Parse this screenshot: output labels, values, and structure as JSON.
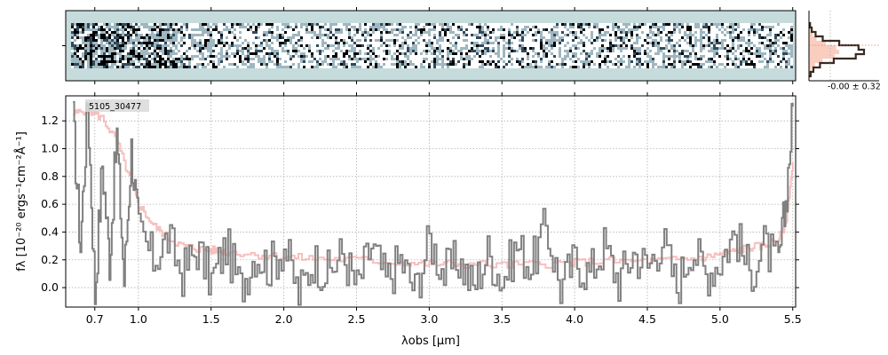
{
  "chart_data": [
    {
      "type": "heatmap",
      "panel": "2d-spectrum",
      "ylim": [
        -1,
        1
      ],
      "xlim": [
        0.5,
        5.52
      ],
      "ytick_visible": [
        0
      ],
      "background_color": "#c6dcdc",
      "colormap": [
        "#ffffff",
        "#9fb7c0",
        "#324a5a",
        "#000000"
      ]
    },
    {
      "type": "histogram",
      "panel": "residual-histogram",
      "annotation": "-0.00 ± 0.32",
      "fill_color": "#f4a58a",
      "line_color": "#3a2a20",
      "bins": [
        -3,
        -2.5,
        -2,
        -1.5,
        -1,
        -0.5,
        0,
        0.5,
        1,
        1.5,
        2,
        2.5,
        3
      ],
      "counts": [
        0.02,
        0.05,
        0.12,
        0.25,
        0.55,
        0.9,
        1.0,
        0.85,
        0.45,
        0.2,
        0.08,
        0.03
      ]
    },
    {
      "type": "line",
      "panel": "1d-spectrum",
      "object_label": "5105_30477",
      "xlabel": "λobs [μm]",
      "ylabel": "fλ [10⁻²⁰ ergs⁻¹cm⁻²Å⁻¹]",
      "xlim": [
        0.5,
        5.52
      ],
      "ylim": [
        -0.14,
        1.38
      ],
      "xticks": [
        0.7,
        1.0,
        1.5,
        2.0,
        2.5,
        3.0,
        3.5,
        4.0,
        4.5,
        5.0,
        5.5
      ],
      "xtick_labels": [
        "0.7",
        "1.0",
        "1.5",
        "2.0",
        "2.5",
        "3.0",
        "3.5",
        "4.0",
        "4.5",
        "5.0",
        "5.5"
      ],
      "yticks": [
        0.0,
        0.2,
        0.4,
        0.6,
        0.8,
        1.0,
        1.2
      ],
      "ytick_labels": [
        "0.0",
        "0.2",
        "0.4",
        "0.6",
        "0.8",
        "1.0",
        "1.2"
      ],
      "grid": true,
      "series": [
        {
          "role": "data",
          "color": "#808080",
          "x": [
            0.55,
            0.6,
            0.65,
            0.7,
            0.75,
            0.8,
            0.85,
            0.9,
            0.95,
            1.0,
            1.1,
            1.2,
            1.3,
            1.4,
            1.5,
            1.6,
            1.7,
            1.8,
            1.9,
            2.0,
            2.1,
            2.2,
            2.3,
            2.4,
            2.5,
            2.6,
            2.7,
            2.8,
            2.9,
            3.0,
            3.1,
            3.2,
            3.3,
            3.4,
            3.5,
            3.6,
            3.7,
            3.8,
            3.9,
            4.0,
            4.1,
            4.2,
            4.3,
            4.4,
            4.5,
            4.6,
            4.7,
            4.8,
            4.9,
            5.0,
            5.1,
            5.2,
            5.3,
            5.4,
            5.45,
            5.5
          ],
          "y": [
            1.2,
            0.3,
            1.35,
            -0.05,
            0.9,
            0.2,
            1.1,
            0.05,
            1.0,
            0.4,
            0.2,
            0.35,
            0.1,
            0.28,
            0.05,
            0.3,
            0.0,
            0.25,
            0.15,
            0.3,
            -0.05,
            0.2,
            0.1,
            0.25,
            0.0,
            0.3,
            0.05,
            0.2,
            -0.02,
            0.35,
            0.1,
            0.2,
            0.0,
            0.25,
            0.05,
            0.3,
            0.15,
            0.45,
            0.0,
            0.2,
            0.1,
            0.3,
            0.05,
            0.25,
            0.15,
            0.35,
            0.0,
            0.3,
            0.1,
            0.2,
            0.4,
            0.1,
            0.3,
            0.15,
            0.6,
            1.3
          ]
        },
        {
          "role": "model",
          "color": "#f4a9a8",
          "x": [
            0.55,
            0.65,
            0.75,
            0.85,
            0.95,
            1.0,
            1.1,
            1.2,
            1.3,
            1.4,
            1.5,
            1.6,
            1.8,
            2.0,
            2.2,
            2.5,
            2.8,
            3.0,
            3.2,
            3.5,
            3.8,
            4.0,
            4.2,
            4.5,
            4.7,
            4.9,
            5.0,
            5.1,
            5.2,
            5.3,
            5.4,
            5.45,
            5.5
          ],
          "y": [
            1.25,
            1.28,
            1.22,
            1.05,
            0.75,
            0.6,
            0.45,
            0.36,
            0.3,
            0.28,
            0.27,
            0.26,
            0.24,
            0.22,
            0.21,
            0.2,
            0.18,
            0.17,
            0.17,
            0.16,
            0.17,
            0.18,
            0.19,
            0.19,
            0.2,
            0.22,
            0.24,
            0.26,
            0.29,
            0.3,
            0.35,
            0.45,
            0.9
          ]
        }
      ]
    }
  ]
}
